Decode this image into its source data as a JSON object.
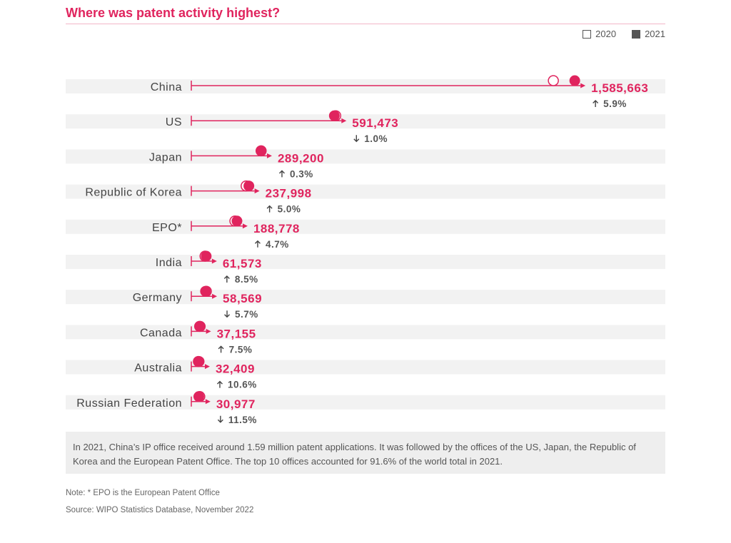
{
  "title": "Where was patent activity highest?",
  "legend": [
    {
      "label": "2020",
      "style": "open"
    },
    {
      "label": "2021",
      "style": "filled"
    }
  ],
  "colors": {
    "accent": "#e0245e",
    "text": "#444444",
    "band": "#f2f2f2"
  },
  "chart_data": {
    "type": "dot-arrow",
    "unit": "patent applications",
    "categories": [
      "China",
      "US",
      "Japan",
      "Republic of Korea",
      "EPO*",
      "India",
      "Germany",
      "Canada",
      "Australia",
      "Russian Federation"
    ],
    "series": [
      {
        "name": "2020",
        "values": [
          1497159,
          597172,
          288472,
          226759,
          180250,
          56771,
          62105,
          34565,
          29294,
          34984
        ]
      },
      {
        "name": "2021",
        "values": [
          1585663,
          591473,
          289200,
          237998,
          188778,
          61573,
          58569,
          37155,
          32409,
          30977
        ]
      }
    ],
    "labels": [
      "1,585,663",
      "591,473",
      "289,200",
      "237,998",
      "188,778",
      "61,573",
      "58,569",
      "37,155",
      "32,409",
      "30,977"
    ],
    "changes": [
      {
        "dir": "up",
        "text": "5.9%"
      },
      {
        "dir": "down",
        "text": "1.0%"
      },
      {
        "dir": "up",
        "text": "0.3%"
      },
      {
        "dir": "up",
        "text": "5.0%"
      },
      {
        "dir": "up",
        "text": "4.7%"
      },
      {
        "dir": "up",
        "text": "8.5%"
      },
      {
        "dir": "down",
        "text": "5.7%"
      },
      {
        "dir": "up",
        "text": "7.5%"
      },
      {
        "dir": "up",
        "text": "10.6%"
      },
      {
        "dir": "down",
        "text": "11.5%"
      }
    ],
    "xlim": [
      0,
      1600000
    ]
  },
  "summary": "In 2021, China’s IP office received around 1.59 million patent applications. It was followed by the offices of the US, Japan, the Republic of Korea and the European Patent Office. The top 10 offices accounted for 91.6% of the world total in 2021.",
  "note": "Note: * EPO is the European Patent Office",
  "source": "Source: WIPO Statistics Database, November 2022"
}
